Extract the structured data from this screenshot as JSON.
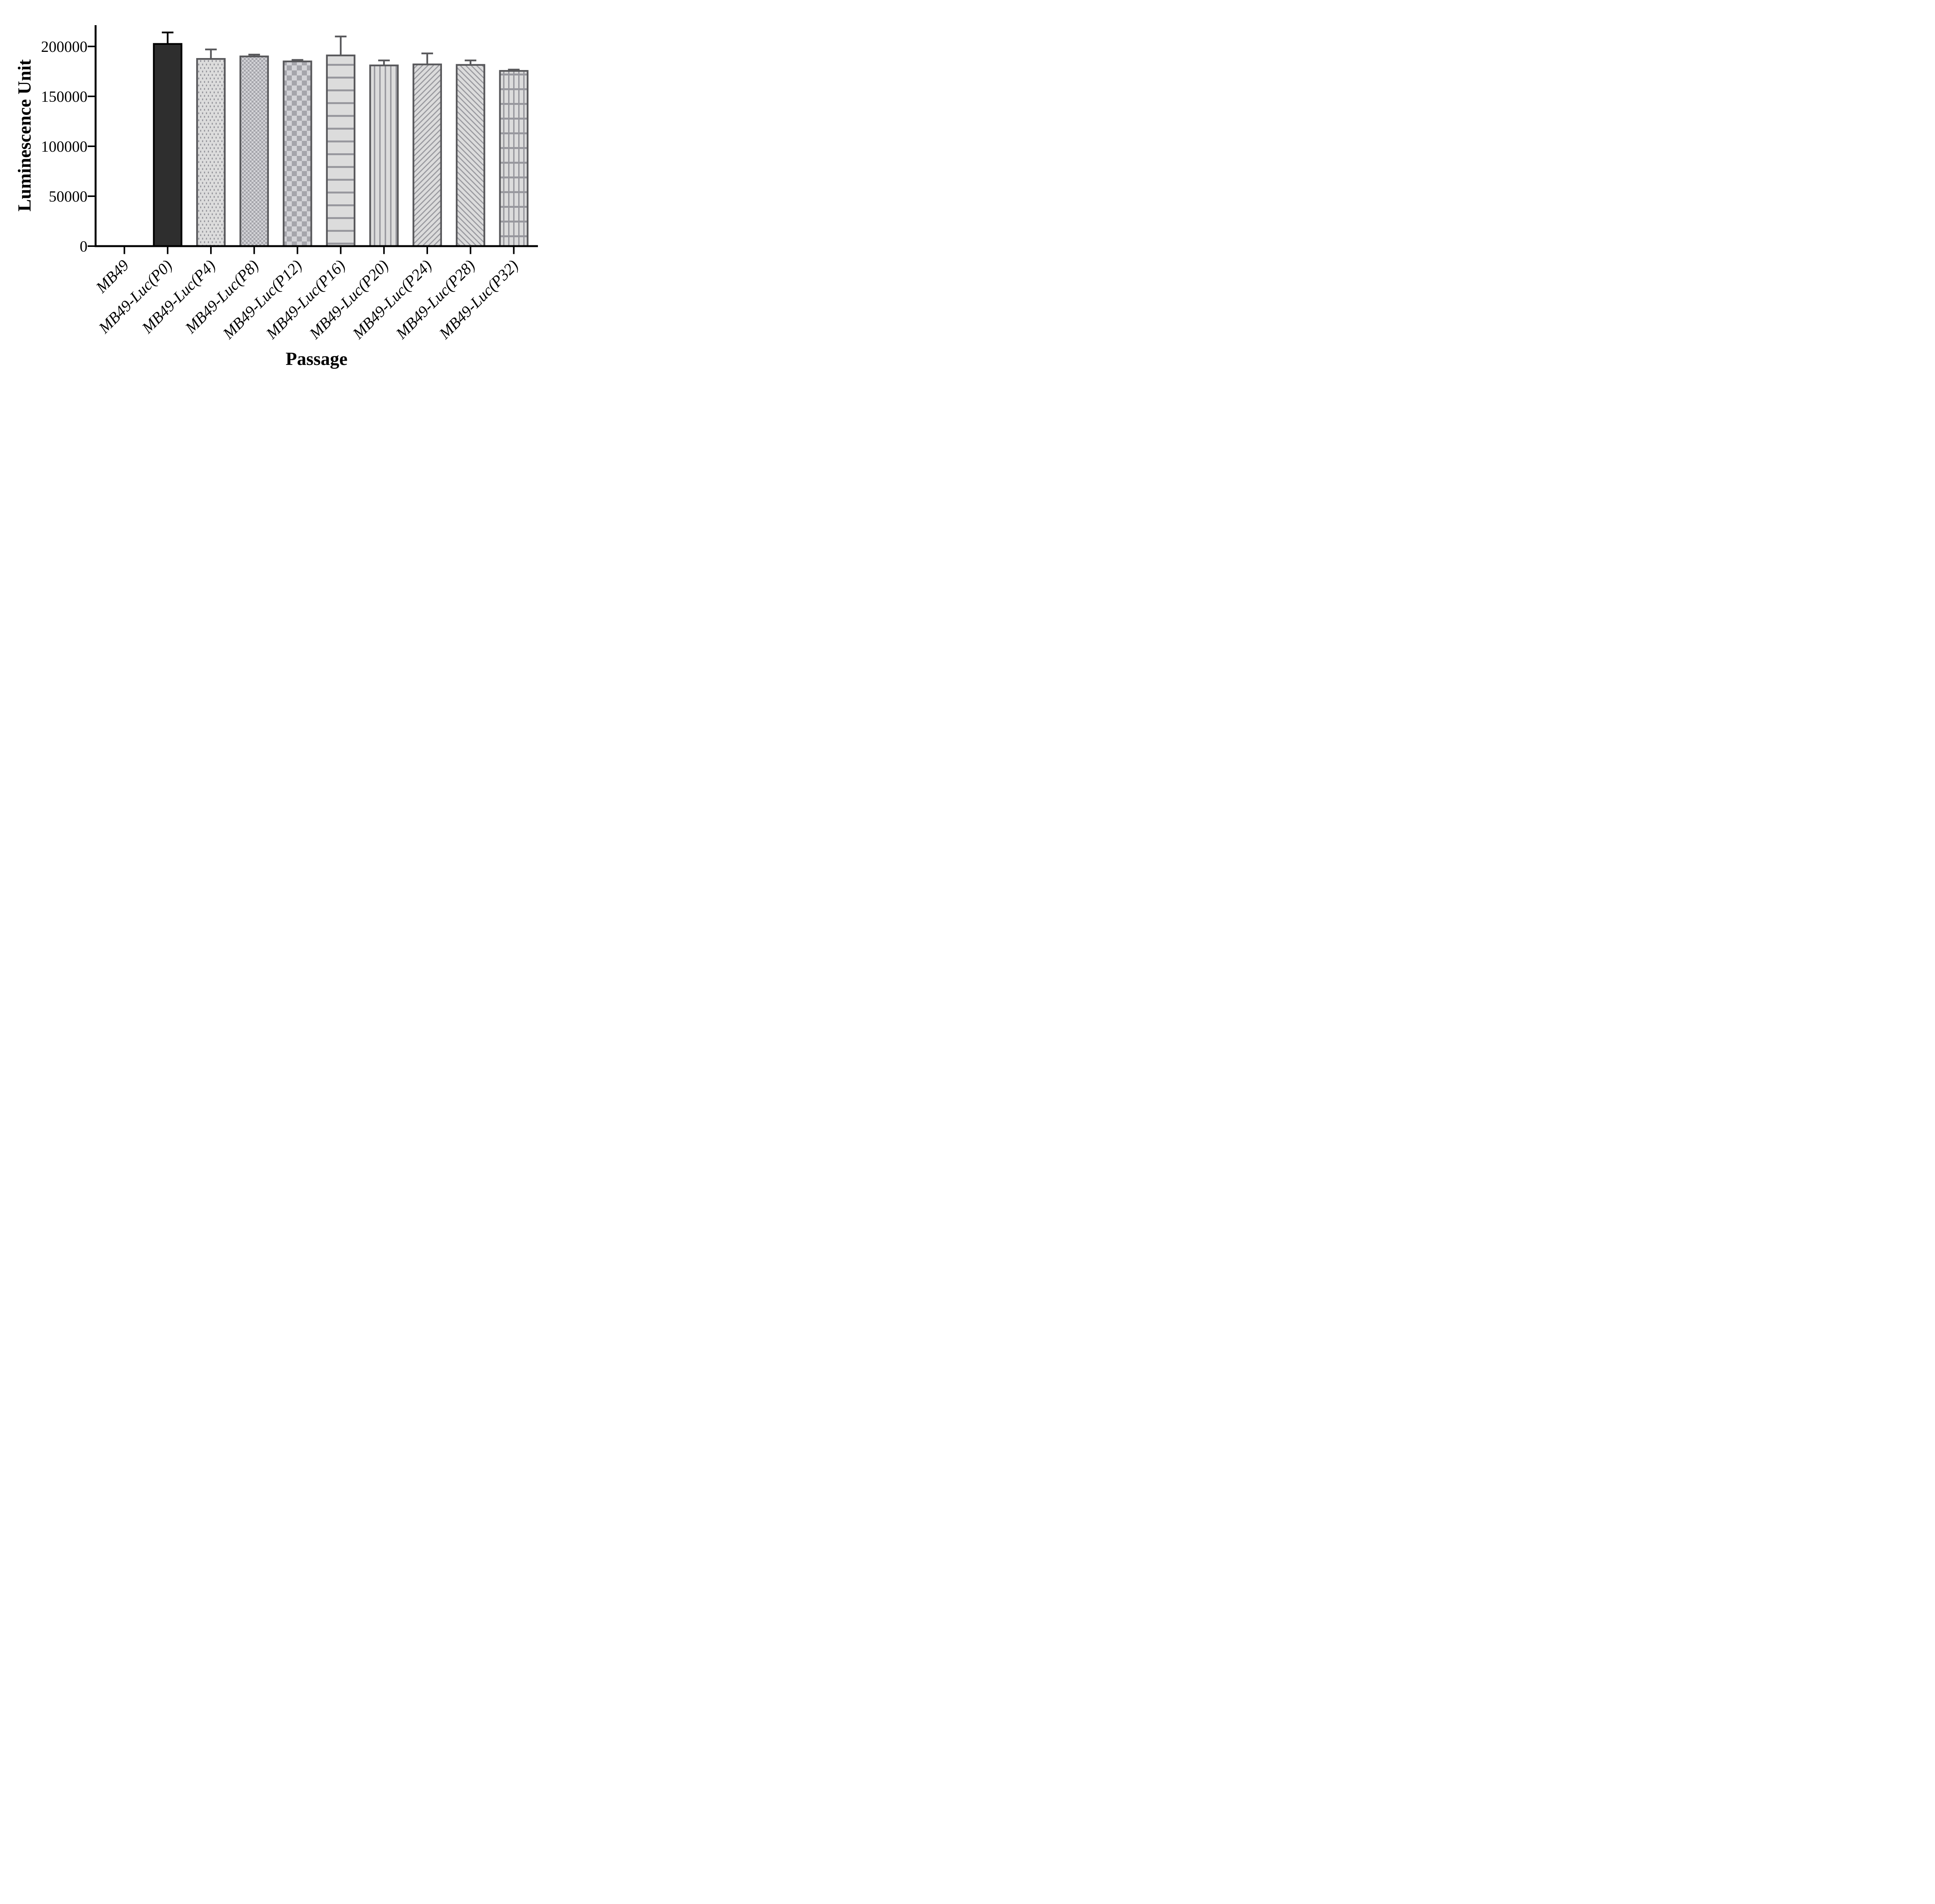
{
  "chart_data": {
    "type": "bar",
    "title": "",
    "xlabel": "Passage",
    "ylabel": "Luminescence Unit",
    "categories": [
      "MB49",
      "MB49-Luc(P0)",
      "MB49-Luc(P4)",
      "MB49-Luc(P8)",
      "MB49-Luc(P12)",
      "MB49-Luc(P16)",
      "MB49-Luc(P20)",
      "MB49-Luc(P24)",
      "MB49-Luc(P28)",
      "MB49-Luc(P32)"
    ],
    "values": [
      0,
      202500,
      187500,
      190000,
      185000,
      191000,
      181000,
      182000,
      181500,
      175500
    ],
    "errors_up": [
      0,
      11500,
      9500,
      1800,
      1500,
      19000,
      5000,
      11000,
      4500,
      1300
    ],
    "patterns": [
      "none",
      "solid",
      "dots",
      "checker-fine",
      "checker",
      "hlines",
      "vlines",
      "diag-up",
      "diag-down",
      "grid"
    ],
    "yticks": [
      0,
      50000,
      100000,
      150000,
      200000
    ],
    "ylim": [
      0,
      221000
    ],
    "grid": false,
    "legend": "none",
    "error_bars": "sd-up-only",
    "colors": {
      "bar_dark_fill": "#2e2e2e",
      "bar_dark_border": "#000000",
      "bar_light_fill": "#dcdcdc",
      "checker_light": "#d3d3d7",
      "checker_dark": "#a5a5ab",
      "pattern_gray": "#98989e",
      "bar_border_gray": "#58585b",
      "error_gray": "#58585b",
      "axis_color": "#000000"
    }
  }
}
